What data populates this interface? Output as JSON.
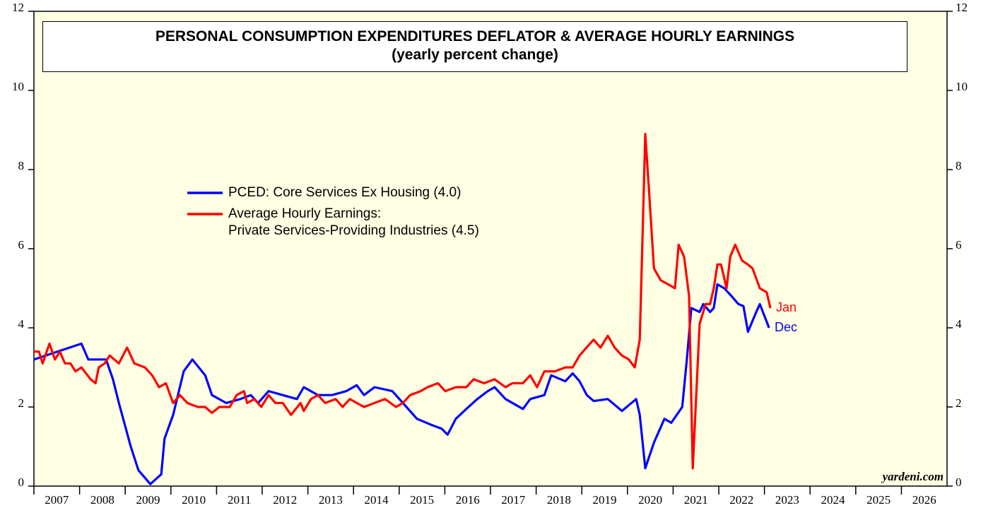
{
  "chart_data": {
    "type": "line",
    "title": "PERSONAL CONSUMPTION EXPENDITURES DEFLATOR & AVERAGE HOURLY EARNINGS",
    "subtitle": "(yearly percent change)",
    "source": "yardeni.com",
    "xlim": [
      2007,
      2027
    ],
    "xticks": [
      2007,
      2008,
      2009,
      2010,
      2011,
      2012,
      2013,
      2014,
      2015,
      2016,
      2017,
      2018,
      2019,
      2020,
      2021,
      2022,
      2023,
      2024,
      2025,
      2026
    ],
    "ylim": [
      0,
      12
    ],
    "yticks": [
      0,
      2,
      4,
      6,
      8,
      10,
      12
    ],
    "y2lim": [
      0,
      12
    ],
    "y2ticks": [
      0,
      2,
      4,
      6,
      8,
      10,
      12
    ],
    "series": [
      {
        "name": "PCED: Core Services Ex Housing (4.0)",
        "color": "#0000ff",
        "end_label": "Dec",
        "x": [
          2007.0,
          2008.04,
          2008.19,
          2008.58,
          2008.73,
          2008.86,
          2009.12,
          2009.29,
          2009.55,
          2009.79,
          2009.86,
          2010.05,
          2010.28,
          2010.47,
          2010.75,
          2010.9,
          2011.21,
          2011.52,
          2011.75,
          2011.91,
          2012.14,
          2012.45,
          2012.76,
          2012.91,
          2013.22,
          2013.53,
          2013.84,
          2014.07,
          2014.23,
          2014.46,
          2014.85,
          2015.16,
          2015.39,
          2015.7,
          2015.93,
          2016.06,
          2016.24,
          2016.47,
          2016.71,
          2016.94,
          2017.09,
          2017.33,
          2017.71,
          2017.87,
          2018.18,
          2018.33,
          2018.64,
          2018.8,
          2018.95,
          2019.11,
          2019.26,
          2019.57,
          2019.88,
          2020.19,
          2020.27,
          2020.39,
          2020.58,
          2020.81,
          2020.96,
          2021.2,
          2021.3,
          2021.4,
          2021.58,
          2021.66,
          2021.81,
          2021.89,
          2021.97,
          2022.12,
          2022.28,
          2022.43,
          2022.54,
          2022.64,
          2022.82,
          2022.9,
          2023.1
        ],
        "values": [
          3.2,
          3.6,
          3.2,
          3.2,
          2.7,
          2.1,
          1.0,
          0.4,
          0.05,
          0.3,
          1.2,
          1.8,
          2.9,
          3.2,
          2.8,
          2.3,
          2.1,
          2.2,
          2.3,
          2.1,
          2.4,
          2.3,
          2.2,
          2.5,
          2.3,
          2.3,
          2.4,
          2.55,
          2.3,
          2.5,
          2.4,
          2.0,
          1.7,
          1.55,
          1.45,
          1.3,
          1.7,
          1.95,
          2.2,
          2.4,
          2.5,
          2.2,
          1.95,
          2.2,
          2.3,
          2.8,
          2.65,
          2.85,
          2.65,
          2.3,
          2.15,
          2.2,
          1.9,
          2.2,
          1.8,
          0.45,
          1.1,
          1.7,
          1.6,
          2.0,
          3.2,
          4.5,
          4.4,
          4.6,
          4.4,
          4.5,
          5.1,
          5.0,
          4.8,
          4.6,
          4.55,
          3.9,
          4.4,
          4.6,
          4.0
        ]
      },
      {
        "name": "Average Hourly Earnings:\nPrivate Services-Providing Industries (4.5)",
        "color": "#ff0000",
        "end_label": "Jan",
        "x": [
          2007.0,
          2007.11,
          2007.19,
          2007.34,
          2007.46,
          2007.57,
          2007.68,
          2007.8,
          2007.91,
          2008.04,
          2008.24,
          2008.35,
          2008.42,
          2008.55,
          2008.66,
          2008.86,
          2009.04,
          2009.2,
          2009.43,
          2009.59,
          2009.74,
          2009.89,
          2010.05,
          2010.2,
          2010.36,
          2010.59,
          2010.75,
          2010.9,
          2011.06,
          2011.29,
          2011.44,
          2011.6,
          2011.67,
          2011.83,
          2011.98,
          2012.14,
          2012.29,
          2012.45,
          2012.63,
          2012.84,
          2012.91,
          2013.07,
          2013.22,
          2013.38,
          2013.61,
          2013.76,
          2013.92,
          2014.07,
          2014.23,
          2014.46,
          2014.69,
          2014.93,
          2015.08,
          2015.24,
          2015.47,
          2015.62,
          2015.85,
          2016.01,
          2016.24,
          2016.47,
          2016.63,
          2016.86,
          2017.09,
          2017.33,
          2017.48,
          2017.71,
          2017.87,
          2018.02,
          2018.18,
          2018.41,
          2018.64,
          2018.8,
          2018.95,
          2019.18,
          2019.26,
          2019.41,
          2019.57,
          2019.72,
          2019.88,
          2020.03,
          2020.16,
          2020.27,
          2020.39,
          2020.47,
          2020.58,
          2020.73,
          2020.89,
          2021.04,
          2021.12,
          2021.24,
          2021.35,
          2021.43,
          2021.58,
          2021.71,
          2021.81,
          2021.89,
          2021.97,
          2022.05,
          2022.17,
          2022.25,
          2022.36,
          2022.51,
          2022.64,
          2022.74,
          2022.9,
          2023.05,
          2023.13
        ],
        "values": [
          3.4,
          3.4,
          3.1,
          3.6,
          3.2,
          3.4,
          3.1,
          3.1,
          2.9,
          3.0,
          2.7,
          2.6,
          3.0,
          3.1,
          3.3,
          3.1,
          3.5,
          3.1,
          3.0,
          2.8,
          2.5,
          2.6,
          2.1,
          2.3,
          2.1,
          2.0,
          2.0,
          1.85,
          2.0,
          2.0,
          2.3,
          2.4,
          2.1,
          2.2,
          2.0,
          2.3,
          2.1,
          2.1,
          1.8,
          2.1,
          1.9,
          2.2,
          2.3,
          2.1,
          2.2,
          2.0,
          2.2,
          2.1,
          2.0,
          2.1,
          2.2,
          2.0,
          2.1,
          2.3,
          2.4,
          2.5,
          2.6,
          2.4,
          2.5,
          2.5,
          2.7,
          2.6,
          2.7,
          2.5,
          2.6,
          2.6,
          2.8,
          2.5,
          2.9,
          2.9,
          3.0,
          3.0,
          3.3,
          3.6,
          3.7,
          3.5,
          3.8,
          3.5,
          3.3,
          3.2,
          3.0,
          3.7,
          8.9,
          7.5,
          5.5,
          5.2,
          5.1,
          5.0,
          6.1,
          5.8,
          4.8,
          0.45,
          4.1,
          4.6,
          4.6,
          5.0,
          5.6,
          5.6,
          5.0,
          5.8,
          6.1,
          5.7,
          5.6,
          5.5,
          5.0,
          4.9,
          4.5
        ]
      }
    ]
  }
}
